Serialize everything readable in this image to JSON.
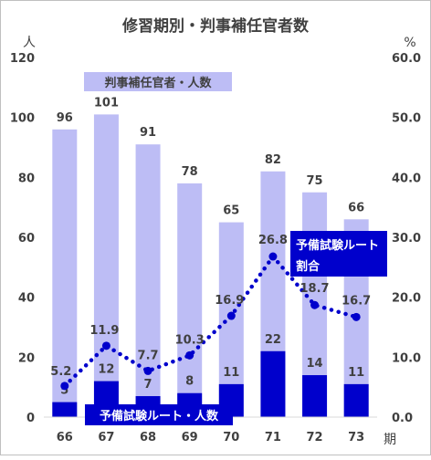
{
  "chart_data": {
    "type": "bar",
    "title": "修習期別・判事補任官者数",
    "xlabel": "期",
    "ylabel_left": "人",
    "ylabel_right": "%",
    "categories": [
      "66",
      "67",
      "68",
      "69",
      "70",
      "71",
      "72",
      "73"
    ],
    "ylim_left": [
      0,
      120
    ],
    "yticks_left": [
      "0",
      "20",
      "40",
      "60",
      "80",
      "100",
      "120"
    ],
    "ylim_right": [
      0,
      60
    ],
    "yticks_right": [
      "0.0",
      "10.0",
      "20.0",
      "30.0",
      "40.0",
      "50.0",
      "60.0"
    ],
    "grid": false,
    "series": [
      {
        "name": "判事補任官者・人数",
        "kind": "bar",
        "axis": "left",
        "color": "#bdbdf5",
        "values": [
          96,
          101,
          91,
          78,
          65,
          82,
          75,
          66
        ],
        "labels": [
          "96",
          "101",
          "91",
          "78",
          "65",
          "82",
          "75",
          "66"
        ]
      },
      {
        "name": "予備試験ルート・人数",
        "kind": "bar",
        "axis": "left",
        "color": "#0000cc",
        "values": [
          5,
          12,
          7,
          8,
          11,
          22,
          14,
          11
        ],
        "labels": [
          "5",
          "12",
          "7",
          "8",
          "11",
          "22",
          "14",
          "11"
        ]
      },
      {
        "name": "予備試験ルート割合",
        "kind": "line",
        "axis": "right",
        "style": "dotted",
        "color": "#0000cc",
        "values": [
          5.2,
          11.9,
          7.7,
          10.3,
          16.9,
          26.8,
          18.7,
          16.7
        ],
        "labels": [
          "5.2",
          "11.9",
          "7.7",
          "10.3",
          "16.9",
          "26.8",
          "18.7",
          "16.7"
        ]
      }
    ],
    "annotations": {
      "total_label": "判事補任官者・人数",
      "route_count_label": "予備試験ルート・人数",
      "route_ratio_line1": "予備試験ルート",
      "route_ratio_line2": "割合"
    }
  }
}
